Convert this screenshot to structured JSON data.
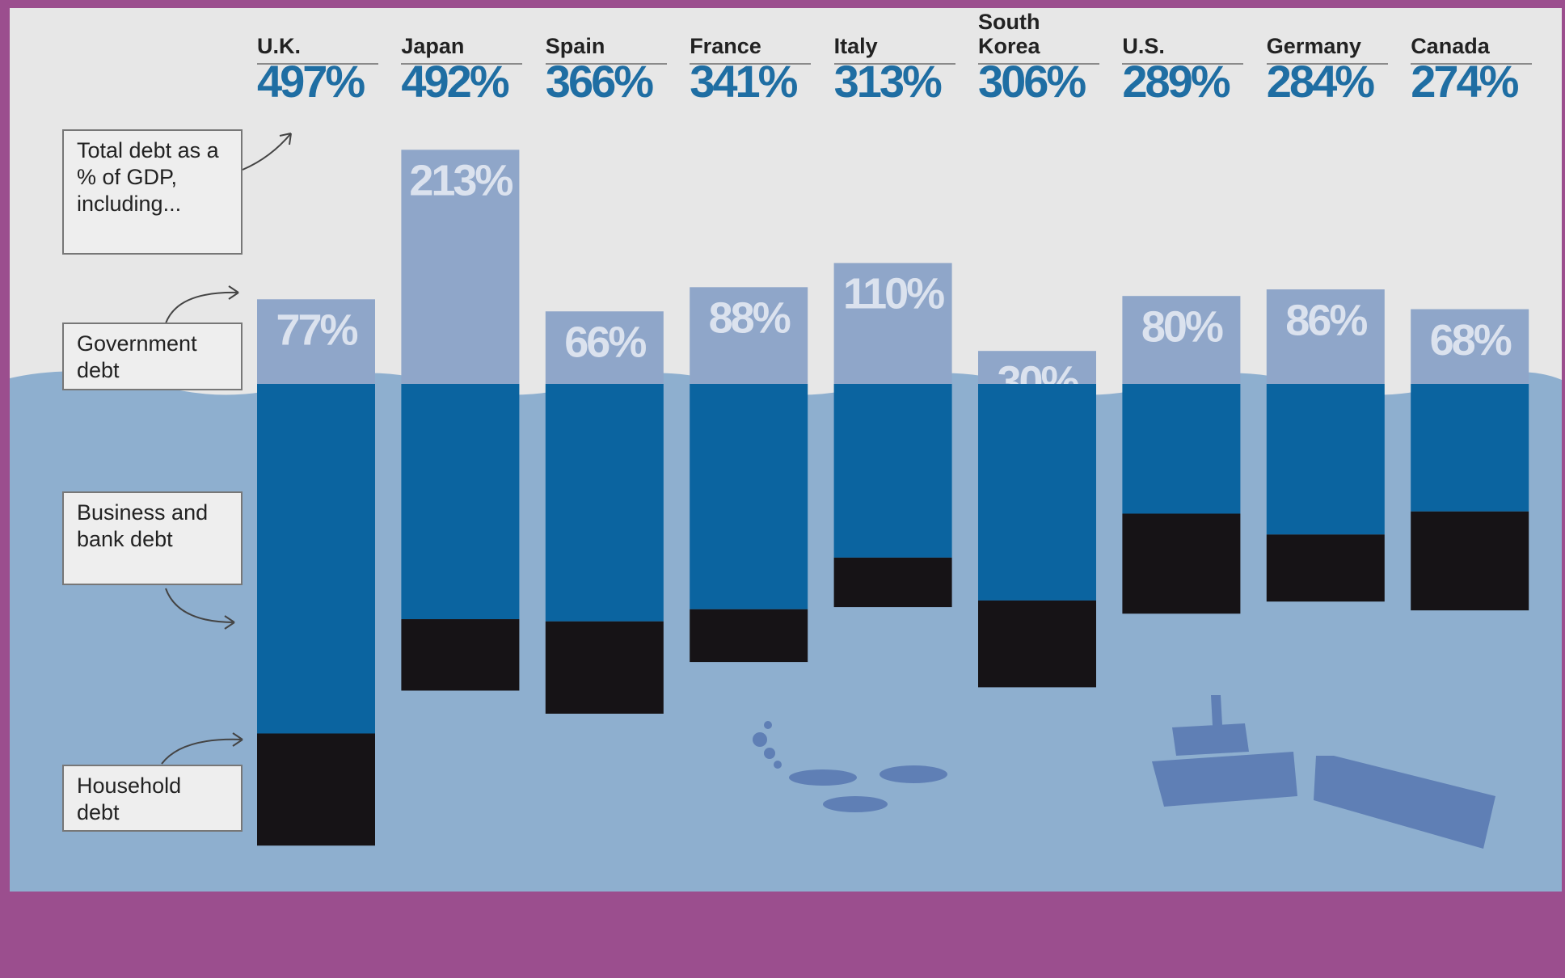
{
  "chart_data": {
    "type": "stacked_bar",
    "legend_title": "Total debt as a % of GDP, including...",
    "categories": [
      "U.K.",
      "Japan",
      "Spain",
      "France",
      "Italy",
      "South Korea",
      "U.S.",
      "Germany",
      "Canada"
    ],
    "totals": {
      "values": [
        497,
        492,
        366,
        341,
        313,
        306,
        289,
        284,
        274
      ],
      "value_labels": [
        "497%",
        "492%",
        "366%",
        "341%",
        "313%",
        "306%",
        "289%",
        "284%",
        "274%"
      ],
      "color": "#1f6ea3"
    },
    "series": [
      {
        "name": "Government debt",
        "color": "#8fa6c9",
        "values": [
          77,
          213,
          66,
          88,
          110,
          30,
          80,
          86,
          68
        ],
        "value_labels": [
          "77%",
          "213%",
          "66%",
          "88%",
          "110%",
          "30%",
          "80%",
          "86%",
          "68%"
        ]
      },
      {
        "name": "Business and bank debt",
        "color": "#0b64a0",
        "values": [
          318,
          214,
          216,
          205,
          158,
          197,
          118,
          137,
          116
        ]
      },
      {
        "name": "Household debt",
        "color": "#161316",
        "values": [
          102,
          65,
          84,
          48,
          45,
          79,
          91,
          61,
          90
        ]
      }
    ]
  }
}
